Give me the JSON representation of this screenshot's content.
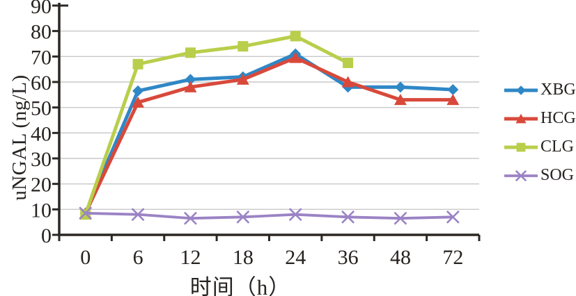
{
  "figure": {
    "background_color": "#ffffff"
  },
  "chart_data": {
    "type": "line",
    "title": "",
    "xlabel": "时间（h）",
    "ylabel": "uNGAL (ng/L)",
    "categories": [
      "0",
      "6",
      "12",
      "18",
      "24",
      "36",
      "48",
      "72"
    ],
    "ylim": [
      0,
      90
    ],
    "y_ticks": [
      0,
      10,
      20,
      30,
      40,
      50,
      60,
      70,
      80,
      90
    ],
    "grid": "horizontal",
    "legend_position": "right",
    "axis_color": "#2b2723",
    "grid_color": "#c9c9c9",
    "text_color": "#262220",
    "series": [
      {
        "name": "XBG",
        "color": "#2f87c6",
        "marker": "diamond",
        "line_width": 5,
        "values": [
          8.5,
          56.5,
          61,
          62,
          71,
          58,
          58,
          57
        ]
      },
      {
        "name": "HCG",
        "color": "#d8493b",
        "marker": "triangle",
        "line_width": 5,
        "values": [
          8.5,
          52,
          58,
          61,
          69.5,
          60,
          53,
          53
        ]
      },
      {
        "name": "CLG",
        "color": "#b9ce4b",
        "marker": "square",
        "line_width": 5,
        "values": [
          8,
          67,
          71.5,
          74,
          78,
          67.5,
          null,
          null
        ]
      },
      {
        "name": "SOG",
        "color": "#9b83c5",
        "marker": "x",
        "line_width": 3.8,
        "values": [
          8.5,
          8,
          6.5,
          7,
          8,
          7,
          6.5,
          7
        ]
      }
    ]
  }
}
